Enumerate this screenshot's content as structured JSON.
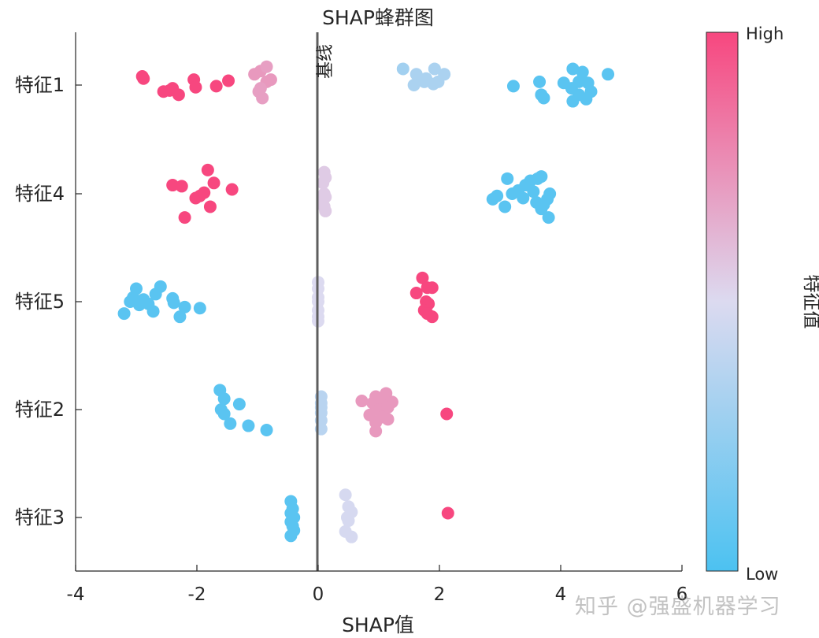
{
  "chart_data": {
    "type": "scatter",
    "title": "SHAP蜂群图",
    "xlabel": "SHAP值",
    "xlim": [
      -4,
      6
    ],
    "xticks": [
      -4,
      -2,
      0,
      2,
      4,
      6
    ],
    "features": [
      "特征1",
      "特征4",
      "特征5",
      "特征2",
      "特征3"
    ],
    "baseline": {
      "x": 0,
      "label": "基线"
    },
    "colorbar": {
      "label": "特征值",
      "high_label": "High",
      "low_label": "Low",
      "high_color": "#f7477f",
      "mid_color": "#dcdaf0",
      "low_color": "#4cc2f1"
    },
    "grid": false,
    "points": [
      {
        "feature": "特征1",
        "items": [
          [
            -2.9,
            0.08,
            1
          ],
          [
            -2.88,
            0.06,
            1
          ],
          [
            -2.55,
            -0.06,
            1
          ],
          [
            -2.45,
            -0.05,
            1
          ],
          [
            -2.4,
            -0.03,
            1
          ],
          [
            -2.3,
            -0.09,
            1
          ],
          [
            -2.05,
            0.05,
            1
          ],
          [
            -2.02,
            -0.02,
            1
          ],
          [
            -1.68,
            -0.01,
            1
          ],
          [
            -1.48,
            0.04,
            1
          ],
          [
            -1.05,
            0.1,
            0.72
          ],
          [
            -0.95,
            0.13,
            0.72
          ],
          [
            -0.85,
            0.17,
            0.7
          ],
          [
            -0.85,
            0.03,
            0.72
          ],
          [
            -0.78,
            0.05,
            0.72
          ],
          [
            -0.98,
            -0.06,
            0.7
          ],
          [
            -0.92,
            -0.12,
            0.7
          ],
          [
            -0.95,
            -0.03,
            0.7
          ],
          [
            1.4,
            0.15,
            0.3
          ],
          [
            1.62,
            0.1,
            0.33
          ],
          [
            1.78,
            0.06,
            0.33
          ],
          [
            1.92,
            0.15,
            0.33
          ],
          [
            2.08,
            0.1,
            0.33
          ],
          [
            1.58,
            0.0,
            0.33
          ],
          [
            1.75,
            0.03,
            0.33
          ],
          [
            1.9,
            0.01,
            0.33
          ],
          [
            1.98,
            0.03,
            0.33
          ],
          [
            3.22,
            -0.01,
            0.05
          ],
          [
            3.65,
            0.03,
            0.05
          ],
          [
            3.68,
            -0.09,
            0.05
          ],
          [
            3.72,
            -0.12,
            0.05
          ],
          [
            4.05,
            0.02,
            0.05
          ],
          [
            4.18,
            -0.03,
            0.05
          ],
          [
            4.2,
            0.15,
            0.05
          ],
          [
            4.3,
            0.03,
            0.05
          ],
          [
            4.36,
            0.12,
            0.05
          ],
          [
            4.3,
            -0.09,
            0.05
          ],
          [
            4.2,
            -0.15,
            0.05
          ],
          [
            4.42,
            -0.13,
            0.05
          ],
          [
            4.45,
            0.02,
            0.05
          ],
          [
            4.5,
            -0.06,
            0.05
          ],
          [
            4.78,
            0.1,
            0.05
          ]
        ]
      },
      {
        "feature": "特征4",
        "items": [
          [
            -2.4,
            0.08,
            1
          ],
          [
            -2.25,
            0.07,
            1
          ],
          [
            -2.2,
            -0.22,
            1
          ],
          [
            -2.02,
            -0.04,
            1
          ],
          [
            -1.95,
            -0.02,
            1
          ],
          [
            -1.88,
            0.01,
            1
          ],
          [
            -1.82,
            0.22,
            1
          ],
          [
            -1.72,
            0.1,
            1
          ],
          [
            -1.78,
            -0.12,
            1
          ],
          [
            -1.42,
            0.04,
            1
          ],
          [
            0.1,
            0.2,
            0.55
          ],
          [
            0.12,
            0.15,
            0.55
          ],
          [
            0.08,
            0.1,
            0.55
          ],
          [
            0.1,
            0.0,
            0.55
          ],
          [
            0.12,
            -0.03,
            0.55
          ],
          [
            0.08,
            -0.06,
            0.55
          ],
          [
            0.1,
            -0.12,
            0.55
          ],
          [
            0.12,
            -0.16,
            0.55
          ],
          [
            2.88,
            -0.05,
            0.05
          ],
          [
            2.95,
            -0.02,
            0.05
          ],
          [
            3.08,
            -0.12,
            0.05
          ],
          [
            3.12,
            0.14,
            0.05
          ],
          [
            3.2,
            0.0,
            0.05
          ],
          [
            3.3,
            0.03,
            0.05
          ],
          [
            3.38,
            -0.04,
            0.05
          ],
          [
            3.42,
            0.08,
            0.05
          ],
          [
            3.5,
            0.12,
            0.05
          ],
          [
            3.55,
            0.02,
            0.05
          ],
          [
            3.6,
            -0.08,
            0.05
          ],
          [
            3.62,
            0.14,
            0.05
          ],
          [
            3.68,
            0.16,
            0.05
          ],
          [
            3.72,
            -0.1,
            0.05
          ],
          [
            3.78,
            -0.05,
            0.05
          ],
          [
            3.82,
            0.0,
            0.05
          ],
          [
            3.8,
            -0.22,
            0.05
          ],
          [
            3.68,
            -0.14,
            0.05
          ]
        ]
      },
      {
        "feature": "特征5",
        "items": [
          [
            -3.2,
            -0.11,
            0.05
          ],
          [
            -3.1,
            0.0,
            0.05
          ],
          [
            -3.05,
            0.04,
            0.05
          ],
          [
            -3.0,
            0.12,
            0.05
          ],
          [
            -2.95,
            -0.03,
            0.05
          ],
          [
            -2.88,
            0.02,
            0.05
          ],
          [
            -2.8,
            -0.02,
            0.05
          ],
          [
            -2.72,
            -0.09,
            0.05
          ],
          [
            -2.68,
            0.07,
            0.05
          ],
          [
            -2.6,
            0.14,
            0.05
          ],
          [
            -2.4,
            0.03,
            0.05
          ],
          [
            -2.38,
            -0.01,
            0.05
          ],
          [
            -2.28,
            -0.14,
            0.05
          ],
          [
            -2.2,
            -0.05,
            0.05
          ],
          [
            -1.95,
            -0.06,
            0.05
          ],
          [
            0.0,
            0.18,
            0.5
          ],
          [
            0.0,
            0.12,
            0.5
          ],
          [
            0.0,
            0.04,
            0.5
          ],
          [
            0.0,
            0.0,
            0.5
          ],
          [
            0.0,
            -0.08,
            0.5
          ],
          [
            0.0,
            -0.14,
            0.5
          ],
          [
            0.0,
            -0.18,
            0.5
          ],
          [
            1.72,
            0.22,
            1
          ],
          [
            1.62,
            0.08,
            1
          ],
          [
            1.8,
            0.13,
            1
          ],
          [
            1.88,
            0.13,
            1
          ],
          [
            1.78,
            0.0,
            1
          ],
          [
            1.82,
            -0.02,
            1
          ],
          [
            1.75,
            -0.08,
            1
          ],
          [
            1.8,
            -0.11,
            1
          ],
          [
            1.88,
            -0.14,
            1
          ]
        ]
      },
      {
        "feature": "特征2",
        "items": [
          [
            -1.62,
            0.18,
            0.05
          ],
          [
            -1.55,
            0.1,
            0.05
          ],
          [
            -1.3,
            0.05,
            0.05
          ],
          [
            -1.6,
            0.0,
            0.05
          ],
          [
            -1.55,
            -0.04,
            0.05
          ],
          [
            -1.45,
            -0.13,
            0.05
          ],
          [
            -1.15,
            -0.15,
            0.05
          ],
          [
            -0.85,
            -0.19,
            0.05
          ],
          [
            0.05,
            0.12,
            0.38
          ],
          [
            0.05,
            0.06,
            0.38
          ],
          [
            0.05,
            0.02,
            0.38
          ],
          [
            0.05,
            -0.03,
            0.38
          ],
          [
            0.05,
            -0.1,
            0.38
          ],
          [
            0.05,
            -0.18,
            0.38
          ],
          [
            0.72,
            0.08,
            0.72
          ],
          [
            0.9,
            0.06,
            0.72
          ],
          [
            0.95,
            0.12,
            0.72
          ],
          [
            1.05,
            0.08,
            0.72
          ],
          [
            1.12,
            0.15,
            0.72
          ],
          [
            1.22,
            0.07,
            0.72
          ],
          [
            1.0,
            0.0,
            0.72
          ],
          [
            1.15,
            0.02,
            0.72
          ],
          [
            0.85,
            -0.05,
            0.72
          ],
          [
            1.05,
            -0.07,
            0.72
          ],
          [
            0.95,
            -0.12,
            0.72
          ],
          [
            1.15,
            -0.09,
            0.72
          ],
          [
            0.95,
            -0.2,
            0.72
          ],
          [
            2.12,
            -0.04,
            1
          ]
        ]
      },
      {
        "feature": "特征3",
        "items": [
          [
            -0.45,
            0.15,
            0.05
          ],
          [
            -0.42,
            0.08,
            0.05
          ],
          [
            -0.45,
            0.04,
            0.05
          ],
          [
            -0.4,
            0.0,
            0.05
          ],
          [
            -0.45,
            -0.04,
            0.05
          ],
          [
            -0.42,
            -0.08,
            0.05
          ],
          [
            -0.4,
            -0.12,
            0.05
          ],
          [
            -0.45,
            -0.17,
            0.05
          ],
          [
            0.45,
            0.21,
            0.48
          ],
          [
            0.5,
            0.1,
            0.48
          ],
          [
            0.55,
            0.05,
            0.48
          ],
          [
            0.48,
            0.0,
            0.48
          ],
          [
            0.5,
            -0.03,
            0.48
          ],
          [
            0.45,
            -0.13,
            0.48
          ],
          [
            0.55,
            -0.18,
            0.48
          ],
          [
            2.14,
            0.04,
            1
          ]
        ]
      }
    ]
  },
  "watermark": "知乎 @强盛机器学习"
}
